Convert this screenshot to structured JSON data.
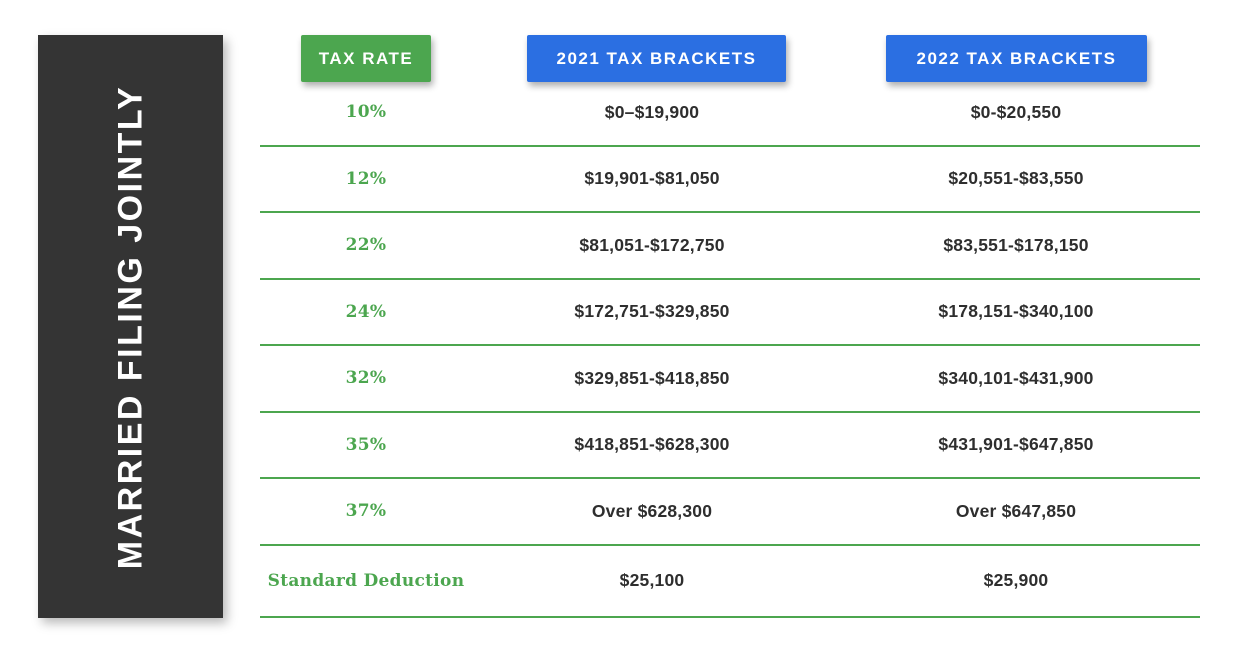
{
  "sidebar": {
    "title": "MARRIED FILING JOINTLY"
  },
  "header": {
    "rate_label": "TAX RATE",
    "col_2021": "2021 TAX BRACKETS",
    "col_2022": "2022 TAX BRACKETS"
  },
  "rows": [
    {
      "rate": "10%",
      "bracket_2021": "$0–$19,900",
      "bracket_2022": "$0-$20,550"
    },
    {
      "rate": "12%",
      "bracket_2021": "$19,901-$81,050",
      "bracket_2022": "$20,551-$83,550"
    },
    {
      "rate": "22%",
      "bracket_2021": "$81,051-$172,750",
      "bracket_2022": "$83,551-$178,150"
    },
    {
      "rate": "24%",
      "bracket_2021": "$172,751-$329,850",
      "bracket_2022": "$178,151-$340,100"
    },
    {
      "rate": "32%",
      "bracket_2021": "$329,851-$418,850",
      "bracket_2022": "$340,101-$431,900"
    },
    {
      "rate": "35%",
      "bracket_2021": "$418,851-$628,300",
      "bracket_2022": "$431,901-$647,850"
    },
    {
      "rate": "37%",
      "bracket_2021": "Over $628,300",
      "bracket_2022": "Over $647,850"
    },
    {
      "rate": "Standard Deduction",
      "bracket_2021": "$25,100",
      "bracket_2022": "$25,900"
    }
  ],
  "colors": {
    "green": "#4CA64F",
    "blue": "#2B6FE2",
    "sidebar_dark": "#343434",
    "text_dark": "#2E2E2E",
    "background": "#FFFFFF"
  },
  "chart_data": {
    "type": "table",
    "title": "MARRIED FILING JOINTLY",
    "columns": [
      "TAX RATE",
      "2021 TAX BRACKETS",
      "2022 TAX BRACKETS"
    ],
    "rows": [
      [
        "10%",
        "$0–$19,900",
        "$0-$20,550"
      ],
      [
        "12%",
        "$19,901-$81,050",
        "$20,551-$83,550"
      ],
      [
        "22%",
        "$81,051-$172,750",
        "$83,551-$178,150"
      ],
      [
        "24%",
        "$172,751-$329,850",
        "$178,151-$340,100"
      ],
      [
        "32%",
        "$329,851-$418,850",
        "$340,101-$431,900"
      ],
      [
        "35%",
        "$418,851-$628,300",
        "$431,901-$647,850"
      ],
      [
        "37%",
        "Over $628,300",
        "Over $647,850"
      ],
      [
        "Standard Deduction",
        "$25,100",
        "$25,900"
      ]
    ]
  }
}
